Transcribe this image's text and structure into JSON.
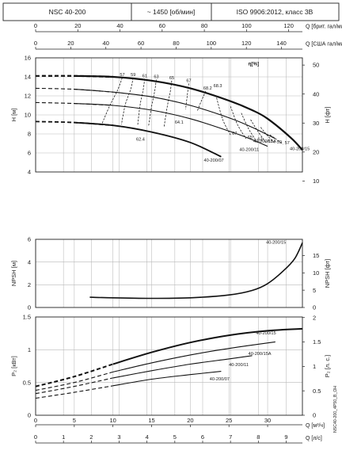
{
  "header": {
    "model": "NSC 40-200",
    "speed": "~ 1450 [об/мин]",
    "standard": "ISO 9906:2012, класс 3B"
  },
  "side_code": "NSC40-200_4P50_B_OH",
  "chart_data": [
    {
      "type": "line",
      "name": "head",
      "title": "",
      "ylabel": "H [м]",
      "ylabel_right": "H [фт]",
      "ylim": [
        4,
        16
      ],
      "yticks": [
        4,
        6,
        8,
        10,
        12,
        14,
        16
      ],
      "yticks_right": [
        10,
        20,
        30,
        40,
        50
      ],
      "x_top_axes": [
        {
          "label": "Q [брит. гал/мин]",
          "ticks": [
            0,
            20,
            40,
            60,
            80,
            100,
            120
          ]
        },
        {
          "label": "Q [США гал/мин]",
          "ticks": [
            0,
            20,
            40,
            60,
            80,
            100,
            120,
            140
          ]
        }
      ],
      "efficiency_label": "η[%]",
      "series": [
        {
          "name": "40-200/15",
          "x": [
            0,
            5,
            10,
            15,
            20,
            25,
            28,
            30,
            33,
            34.5
          ],
          "y": [
            14.1,
            14.1,
            14.0,
            13.6,
            12.8,
            11.5,
            10.5,
            9.6,
            7.6,
            6.3
          ]
        },
        {
          "name": "40-200/15A",
          "x": [
            0,
            5,
            10,
            15,
            20,
            25,
            28,
            31
          ],
          "y": [
            12.8,
            12.7,
            12.4,
            11.9,
            11.0,
            9.7,
            8.7,
            7.5
          ]
        },
        {
          "name": "40-200/11",
          "x": [
            0,
            5,
            10,
            15,
            20,
            25,
            28,
            30
          ],
          "y": [
            11.3,
            11.2,
            11.0,
            10.5,
            9.6,
            8.3,
            7.4,
            6.7
          ]
        },
        {
          "name": "40-200/07",
          "x": [
            0,
            5,
            10,
            15,
            20,
            24
          ],
          "y": [
            9.3,
            9.2,
            8.9,
            8.2,
            7.1,
            5.6
          ]
        }
      ],
      "efficiency_contours": [
        {
          "label": "57",
          "x": [
            11.2,
            10.6,
            9.6,
            8.6
          ],
          "y": [
            13.9,
            12.6,
            11.0,
            9.1
          ]
        },
        {
          "label": "59",
          "x": [
            12.6,
            12.3,
            11.6,
            11.1
          ],
          "y": [
            13.9,
            12.7,
            11.1,
            9.0
          ]
        },
        {
          "label": "61",
          "x": [
            14.1,
            13.9,
            13.5,
            13.2
          ],
          "y": [
            13.8,
            12.6,
            11.0,
            8.9
          ]
        },
        {
          "label": "63",
          "x": [
            15.6,
            15.4,
            15.0,
            14.6
          ],
          "y": [
            13.7,
            12.5,
            10.9,
            8.8
          ]
        },
        {
          "label": "65",
          "x": [
            17.6,
            17.4,
            17.0,
            16.6
          ],
          "y": [
            13.6,
            12.4,
            10.8,
            8.7
          ]
        },
        {
          "label": "67",
          "x": [
            19.8,
            19.6,
            19.4
          ],
          "y": [
            13.3,
            12.0,
            10.6
          ]
        },
        {
          "label": "68.2",
          "x": [
            22.0,
            21.4,
            20.9
          ],
          "y": [
            12.5,
            11.4,
            10.4
          ]
        },
        {
          "label": "67",
          "x": [
            23.4,
            24.2,
            25.2
          ],
          "y": [
            11.8,
            9.5,
            7.9
          ]
        },
        {
          "label": "65",
          "x": [
            25.2,
            26.1,
            27.2
          ],
          "y": [
            10.9,
            9.0,
            7.5
          ]
        },
        {
          "label": "63",
          "x": [
            26.6,
            27.5,
            28.5
          ],
          "y": [
            10.2,
            8.6,
            7.3
          ]
        },
        {
          "label": "61",
          "x": [
            27.8,
            28.8,
            29.8
          ],
          "y": [
            9.5,
            8.2,
            7.1
          ]
        },
        {
          "label": "59",
          "x": [
            29.1,
            30.0,
            31.0
          ],
          "y": [
            8.7,
            7.8,
            7.0
          ]
        },
        {
          "label": "57",
          "x": [
            30.3,
            31.2,
            32.0
          ],
          "y": [
            7.9,
            7.4,
            6.9
          ]
        }
      ],
      "efficiency_points": [
        {
          "label": "68.3",
          "x": 23.0,
          "y": 12.9
        },
        {
          "label": "64.1",
          "x": 18.0,
          "y": 9.1
        },
        {
          "label": "62.4",
          "x": 13.0,
          "y": 7.3
        }
      ]
    },
    {
      "type": "line",
      "name": "npsh",
      "ylabel": "NPSH [м]",
      "ylabel_right": "NPSH [фт]",
      "ylim": [
        0,
        6
      ],
      "yticks": [
        0,
        2,
        4,
        6
      ],
      "yticks_right": [
        0,
        5,
        10,
        15
      ],
      "series": [
        {
          "name": "40-200/15",
          "x": [
            7,
            10,
            15,
            20,
            25,
            28,
            30,
            32,
            33.5,
            34.5
          ],
          "y": [
            0.9,
            0.85,
            0.8,
            0.85,
            1.1,
            1.5,
            2.1,
            3.2,
            4.3,
            5.7
          ]
        }
      ]
    },
    {
      "type": "line",
      "name": "power",
      "ylabel": "P₂ [кВт]",
      "ylabel_right": "P₂ [л. с.]",
      "ylim": [
        0,
        1.5
      ],
      "yticks": [
        0.0,
        0.5,
        1.0,
        1.5
      ],
      "yticks_right": [
        0.0,
        0.5,
        1.0,
        1.5,
        2.0
      ],
      "x_bottom_axes": [
        {
          "label": "Q [м³/ч]",
          "ticks": [
            0,
            5,
            10,
            15,
            20,
            25,
            30
          ]
        },
        {
          "label": "Q [л/с]",
          "ticks": [
            0,
            1,
            2,
            3,
            4,
            5,
            6,
            7,
            8,
            9
          ]
        }
      ],
      "xlim": [
        0,
        34.5
      ],
      "series": [
        {
          "name": "40-200/15",
          "x": [
            0,
            5,
            10,
            15,
            20,
            25,
            30,
            34.5
          ],
          "y": [
            0.44,
            0.59,
            0.78,
            0.96,
            1.11,
            1.22,
            1.29,
            1.32
          ]
        },
        {
          "name": "40-200/15A",
          "x": [
            0,
            5,
            10,
            15,
            20,
            25,
            31
          ],
          "y": [
            0.38,
            0.5,
            0.66,
            0.8,
            0.92,
            1.02,
            1.12
          ]
        },
        {
          "name": "40-200/11",
          "x": [
            0,
            5,
            10,
            15,
            20,
            25,
            28
          ],
          "y": [
            0.33,
            0.44,
            0.57,
            0.68,
            0.78,
            0.86,
            0.91
          ]
        },
        {
          "name": "40-200/07",
          "x": [
            0,
            5,
            10,
            15,
            20,
            24
          ],
          "y": [
            0.26,
            0.35,
            0.45,
            0.55,
            0.62,
            0.67
          ]
        }
      ]
    }
  ]
}
